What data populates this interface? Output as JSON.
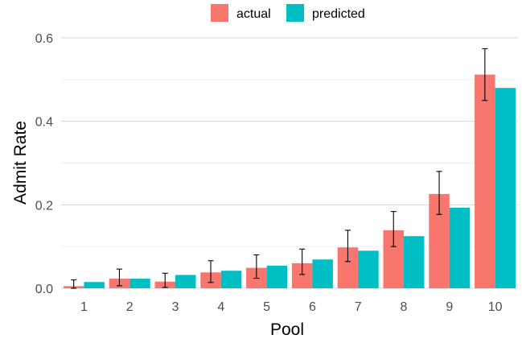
{
  "chart_data": {
    "type": "bar",
    "xlabel": "Pool",
    "ylabel": "Admit Rate",
    "categories": [
      "1",
      "2",
      "3",
      "4",
      "5",
      "6",
      "7",
      "8",
      "9",
      "10"
    ],
    "ylim": [
      0,
      0.6
    ],
    "yticks": [
      0.0,
      0.2,
      0.4,
      0.6
    ],
    "ytick_labels": [
      "0.0",
      "0.2",
      "0.4",
      "0.6"
    ],
    "grid": true,
    "legend_position": "top",
    "series": [
      {
        "name": "actual",
        "color": "#F8766D",
        "values": [
          0.005,
          0.023,
          0.016,
          0.038,
          0.049,
          0.06,
          0.098,
          0.139,
          0.226,
          0.512
        ],
        "error_low": [
          0.0,
          0.006,
          0.002,
          0.014,
          0.024,
          0.033,
          0.064,
          0.1,
          0.177,
          0.45
        ],
        "error_high": [
          0.02,
          0.046,
          0.036,
          0.066,
          0.08,
          0.094,
          0.139,
          0.184,
          0.28,
          0.574
        ]
      },
      {
        "name": "predicted",
        "color": "#00BFC4",
        "values": [
          0.015,
          0.023,
          0.032,
          0.042,
          0.054,
          0.069,
          0.09,
          0.125,
          0.193,
          0.48
        ]
      }
    ]
  }
}
